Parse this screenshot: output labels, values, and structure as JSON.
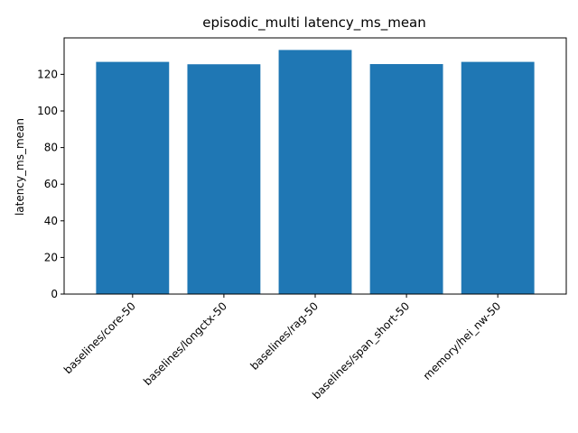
{
  "chart_data": {
    "type": "bar",
    "title": "episodic_multi latency_ms_mean",
    "xlabel": "",
    "ylabel": "latency_ms_mean",
    "categories": [
      "baselines/core-50",
      "baselines/longctx-50",
      "baselines/rag-50",
      "baselines/span_short-50",
      "memory/hei_nw-50"
    ],
    "values": [
      126.8,
      125.5,
      133.3,
      125.6,
      126.8
    ],
    "ylim": [
      0,
      139.9
    ],
    "yticks": [
      0,
      20,
      40,
      60,
      80,
      100,
      120
    ],
    "bar_color": "#1f77b4",
    "grid": false,
    "legend": "none"
  }
}
